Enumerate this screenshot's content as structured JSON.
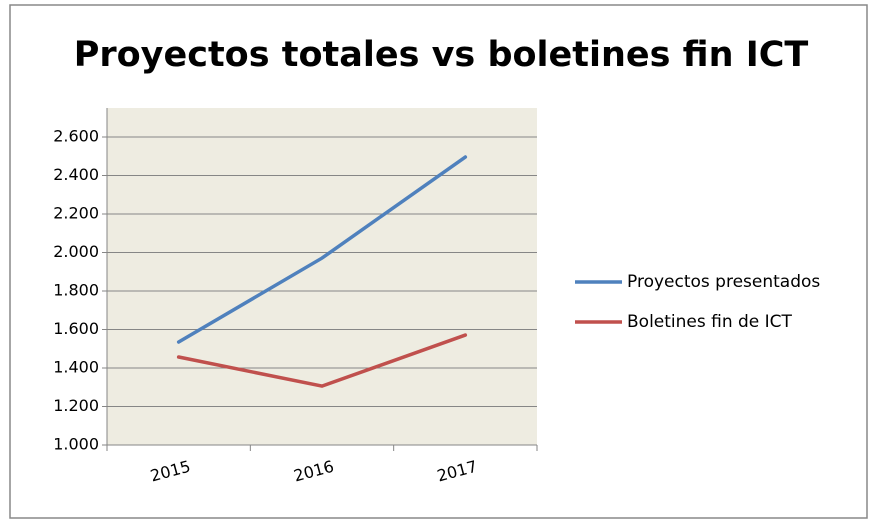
{
  "chart_data": {
    "type": "line",
    "title": "Proyectos totales vs boletines fin ICT",
    "categories": [
      "2015",
      "2016",
      "2017"
    ],
    "series": [
      {
        "name": "Proyectos presentados",
        "color": "#4f81bd",
        "values": [
          1535,
          1971,
          2496
        ]
      },
      {
        "name": "Boletines fin de ICT",
        "color": "#c0504d",
        "values": [
          1457,
          1306,
          1571
        ]
      }
    ],
    "ylim": [
      1000,
      2600
    ],
    "yticks": [
      {
        "value": 1000,
        "label": "1.000"
      },
      {
        "value": 1200,
        "label": "1.200"
      },
      {
        "value": 1400,
        "label": "1.400"
      },
      {
        "value": 1600,
        "label": "1.600"
      },
      {
        "value": 1800,
        "label": "1.800"
      },
      {
        "value": 2000,
        "label": "2.000"
      },
      {
        "value": 2200,
        "label": "2.200"
      },
      {
        "value": 2400,
        "label": "2.400"
      },
      {
        "value": 2600,
        "label": "2.600"
      }
    ],
    "grid": true
  }
}
